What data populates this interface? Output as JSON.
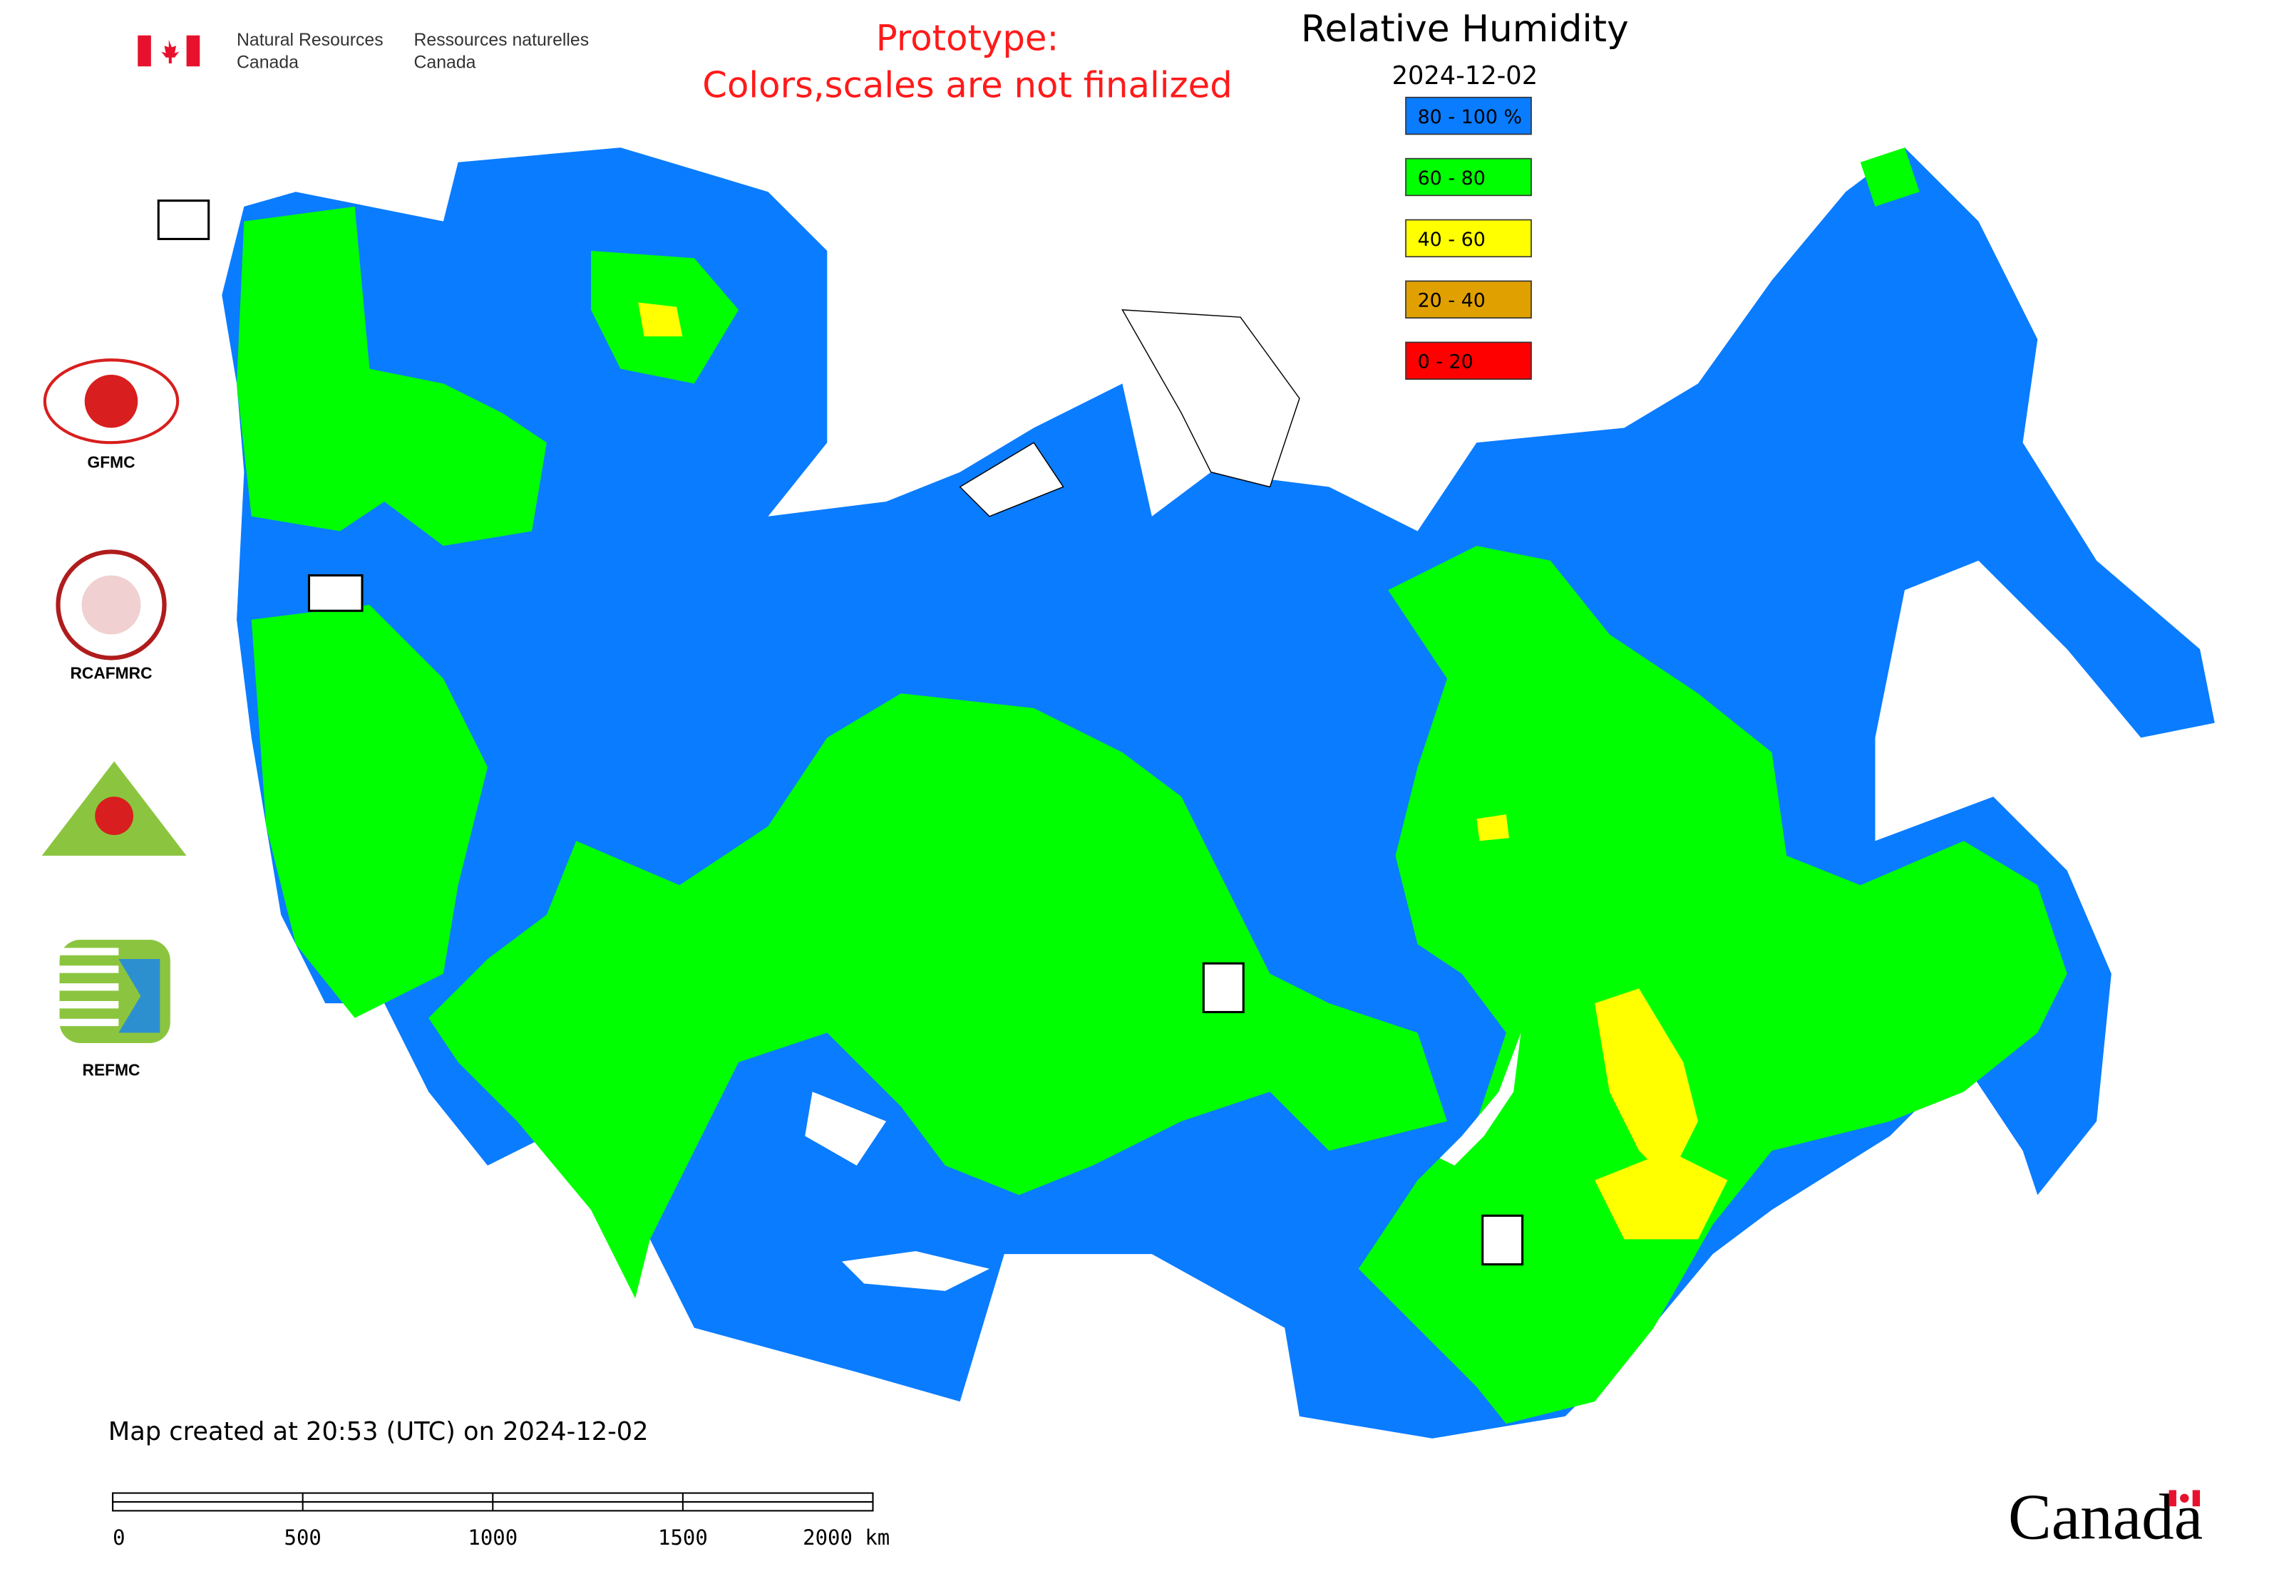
{
  "header": {
    "agency_en": [
      "Natural Resources",
      "Canada"
    ],
    "agency_fr": [
      "Ressources naturelles",
      "Canada"
    ],
    "notice": [
      "Prototype:",
      "Colors,scales are not finalized"
    ]
  },
  "title": "Relative Humidity",
  "date": "2024-12-02",
  "legend": [
    {
      "label": "80 - 100 %",
      "color": "#0a7cff"
    },
    {
      "label": "60 - 80",
      "color": "#00ff00"
    },
    {
      "label": "40 - 60",
      "color": "#ffff00"
    },
    {
      "label": "20 - 40",
      "color": "#e0a000"
    },
    {
      "label": "0 - 20",
      "color": "#ff0000"
    }
  ],
  "logos": [
    "GFMC",
    "RCAFMRC",
    "REFMC"
  ],
  "footer": "Map created at 20:53 (UTC) on 2024-12-02",
  "scale_bar": [
    "0",
    "500",
    "1000",
    "1500",
    "2000 km"
  ],
  "wordmark": "Canada"
}
